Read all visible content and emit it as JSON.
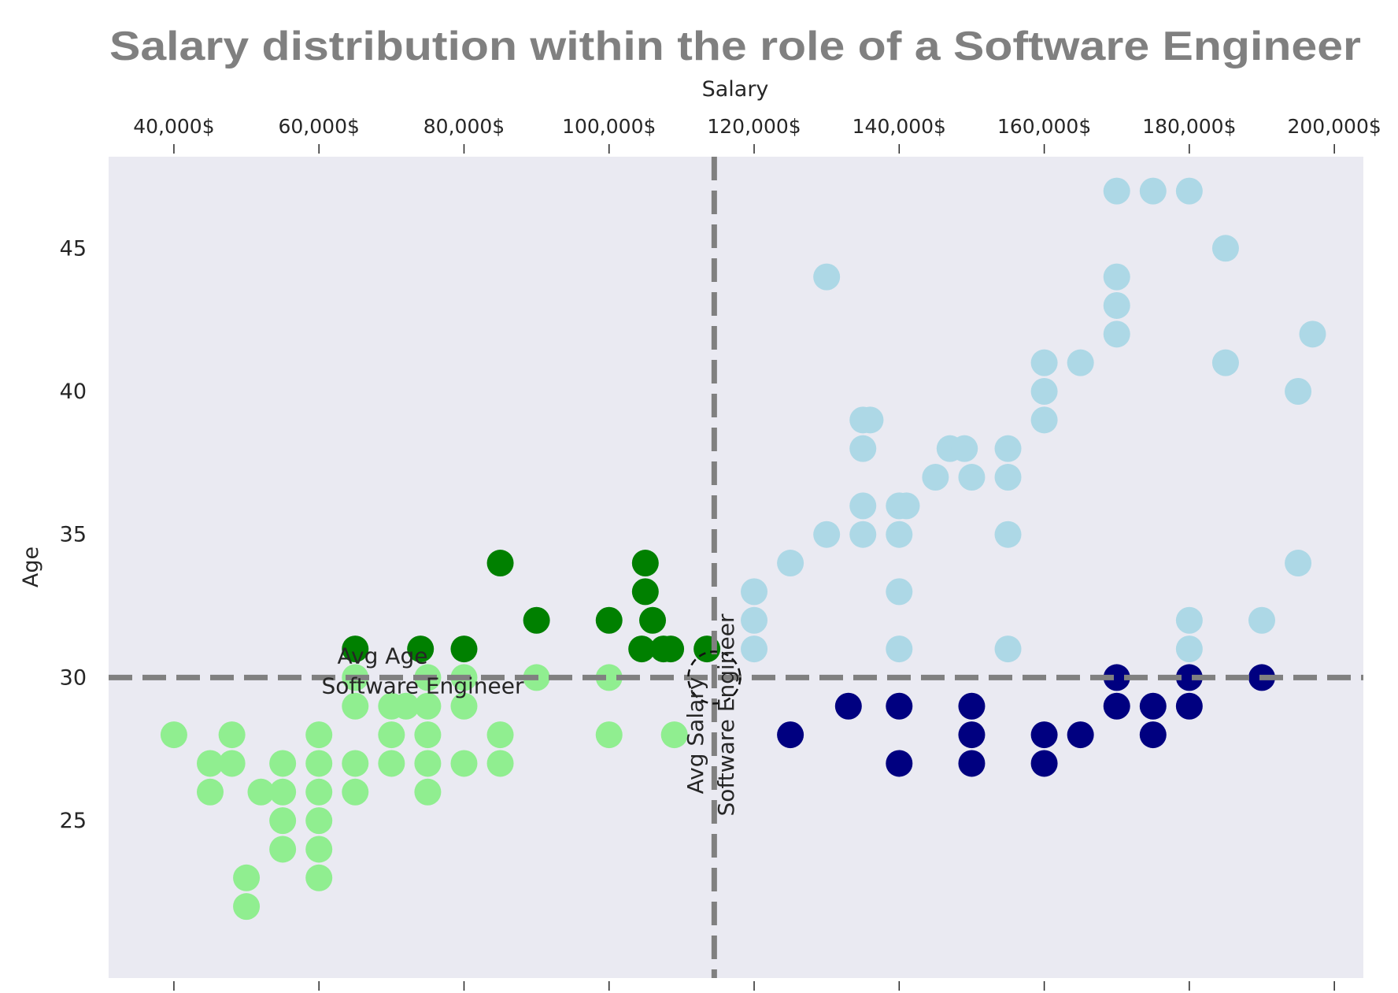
{
  "chart_data": {
    "type": "scatter",
    "title": "Salary distribution within the role of a Software Engineer",
    "xlabel": "Salary",
    "ylabel": "Age",
    "xlim": [
      31000,
      204000
    ],
    "ylim": [
      48.2,
      19.5
    ],
    "x_axis_position": "top",
    "y_axis_inverted": true,
    "grid": false,
    "background_color": "#eaeaf2",
    "x_ticks": [
      40000,
      60000,
      80000,
      100000,
      120000,
      140000,
      160000,
      180000,
      200000
    ],
    "x_tick_labels": [
      "40,000$",
      "60,000$",
      "80,000$",
      "100,000$",
      "120,000$",
      "140,000$",
      "160,000$",
      "180,000$",
      "200,000$"
    ],
    "y_ticks": [
      25,
      30,
      35,
      40,
      45
    ],
    "y_tick_labels": [
      "25",
      "30",
      "35",
      "40",
      "45"
    ],
    "avg_salary": 114500,
    "avg_age": 30,
    "reference_line_color": "#808080",
    "annotations": {
      "avg_age": [
        "Avg Age",
        "Software Engineer"
      ],
      "avg_salary": [
        "Avg Salary",
        "Software Engineer"
      ]
    },
    "series": [
      {
        "color": "#90ee90",
        "points": [
          [
            50000,
            22
          ],
          [
            50000,
            23
          ],
          [
            60000,
            23
          ],
          [
            55000,
            24
          ],
          [
            60000,
            24
          ],
          [
            55000,
            25
          ],
          [
            60000,
            25
          ],
          [
            45000,
            26
          ],
          [
            52000,
            26
          ],
          [
            55000,
            26
          ],
          [
            60000,
            26
          ],
          [
            65000,
            26
          ],
          [
            75000,
            26
          ],
          [
            45000,
            27
          ],
          [
            48000,
            27
          ],
          [
            55000,
            27
          ],
          [
            60000,
            27
          ],
          [
            65000,
            27
          ],
          [
            70000,
            27
          ],
          [
            75000,
            27
          ],
          [
            80000,
            27
          ],
          [
            85000,
            27
          ],
          [
            40000,
            28
          ],
          [
            48000,
            28
          ],
          [
            60000,
            28
          ],
          [
            70000,
            28
          ],
          [
            75000,
            28
          ],
          [
            85000,
            28
          ],
          [
            100000,
            28
          ],
          [
            109000,
            28
          ],
          [
            65000,
            29
          ],
          [
            70000,
            29
          ],
          [
            72000,
            29
          ],
          [
            75000,
            29
          ],
          [
            80000,
            29
          ],
          [
            65000,
            30
          ],
          [
            75000,
            30
          ],
          [
            80000,
            30
          ],
          [
            90000,
            30
          ],
          [
            100000,
            30
          ]
        ]
      },
      {
        "color": "#008000",
        "points": [
          [
            65000,
            31
          ],
          [
            74000,
            31
          ],
          [
            80000,
            31
          ],
          [
            104500,
            31
          ],
          [
            107500,
            31
          ],
          [
            108500,
            31
          ],
          [
            113500,
            31
          ],
          [
            90000,
            32
          ],
          [
            100000,
            32
          ],
          [
            106000,
            32
          ],
          [
            105000,
            33
          ],
          [
            85000,
            34
          ],
          [
            105000,
            34
          ]
        ]
      },
      {
        "color": "#000080",
        "points": [
          [
            140000,
            27
          ],
          [
            150000,
            27
          ],
          [
            160000,
            27
          ],
          [
            125000,
            28
          ],
          [
            150000,
            28
          ],
          [
            160000,
            28
          ],
          [
            165000,
            28
          ],
          [
            175000,
            28
          ],
          [
            133000,
            29
          ],
          [
            140000,
            29
          ],
          [
            150000,
            29
          ],
          [
            170000,
            29
          ],
          [
            175000,
            29
          ],
          [
            180000,
            29
          ],
          [
            170000,
            30
          ],
          [
            180000,
            30
          ],
          [
            190000,
            30
          ]
        ]
      },
      {
        "color": "#add8e6",
        "points": [
          [
            120000,
            31
          ],
          [
            140000,
            31
          ],
          [
            155000,
            31
          ],
          [
            180000,
            31
          ],
          [
            120000,
            32
          ],
          [
            180000,
            32
          ],
          [
            190000,
            32
          ],
          [
            120000,
            33
          ],
          [
            140000,
            33
          ],
          [
            125000,
            34
          ],
          [
            195000,
            34
          ],
          [
            130000,
            35
          ],
          [
            135000,
            35
          ],
          [
            140000,
            35
          ],
          [
            155000,
            35
          ],
          [
            135000,
            36
          ],
          [
            140000,
            36
          ],
          [
            141000,
            36
          ],
          [
            145000,
            37
          ],
          [
            150000,
            37
          ],
          [
            155000,
            37
          ],
          [
            135000,
            38
          ],
          [
            147000,
            38
          ],
          [
            149000,
            38
          ],
          [
            155000,
            38
          ],
          [
            135000,
            39
          ],
          [
            136000,
            39
          ],
          [
            160000,
            39
          ],
          [
            160000,
            40
          ],
          [
            195000,
            40
          ],
          [
            160000,
            41
          ],
          [
            165000,
            41
          ],
          [
            185000,
            41
          ],
          [
            170000,
            42
          ],
          [
            197000,
            42
          ],
          [
            170000,
            43
          ],
          [
            130000,
            44
          ],
          [
            170000,
            44
          ],
          [
            185000,
            45
          ],
          [
            170000,
            47
          ],
          [
            175000,
            47
          ],
          [
            180000,
            47
          ]
        ]
      }
    ]
  }
}
